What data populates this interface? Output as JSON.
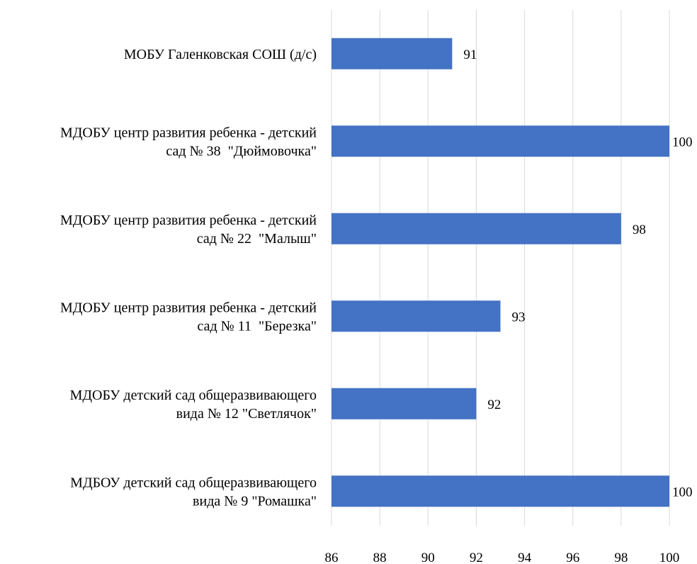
{
  "chart_data": {
    "type": "bar",
    "orientation": "horizontal",
    "categories": [
      [
        "МОБУ Галенковская СОШ (д/с)"
      ],
      [
        "МДОБУ центр развития ребенка - детский",
        "сад № 38  \"Дюймовочка\""
      ],
      [
        "МДОБУ центр развития ребенка - детский",
        "сад № 22  \"Малыш\""
      ],
      [
        "МДОБУ центр развития ребенка - детский",
        "сад № 11  \"Березка\""
      ],
      [
        "МДОБУ детский сад общеразвивающего",
        "вида № 12 \"Светлячок\""
      ],
      [
        "МДБОУ детский сад общеразвивающего",
        "вида № 9 \"Ромашка\""
      ]
    ],
    "values": [
      91,
      100,
      98,
      93,
      92,
      100
    ],
    "data_labels": [
      "91",
      "100",
      "98",
      "93",
      "92",
      "100"
    ],
    "xlim": [
      86,
      100
    ],
    "x_ticks": [
      "86",
      "88",
      "90",
      "92",
      "94",
      "96",
      "98",
      "100"
    ],
    "bar_color": "#4472c4",
    "grid": true,
    "legend": "none"
  }
}
